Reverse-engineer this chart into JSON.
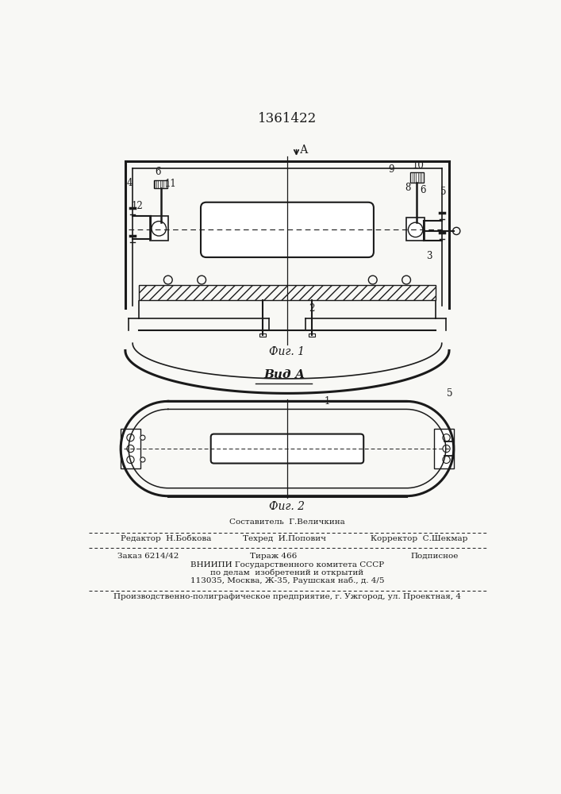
{
  "patent_number": "1361422",
  "fig1_caption": "Фиг. 1",
  "fig2_caption": "Фиг. 2",
  "view_label": "Вид А",
  "arrow_label": "А",
  "editor_line": "Редактор  Н.Бобкова",
  "compositor_line": "Составитель  Г.Величкина",
  "techred_line": "Техред  И.Попович",
  "corrector_line": "Корректор  С.Шекмар",
  "order_line": "Заказ 6214/42",
  "tirazh_line": "Тираж 466",
  "podpisnoe_line": "Подписное",
  "vnipi_line": "ВНИИПИ Государственного комитета СССР",
  "vnipi_line2": "по делам  изобретений и открытий",
  "vnipi_line3": "113035, Москва, Ж-35, Раушская наб., д. 4/5",
  "print_line": "Производственно-полиграфическое предприятие, г. Ужгород, ул. Проектная, 4",
  "bg_color": "#f8f8f5",
  "line_color": "#1a1a1a",
  "text_color": "#1a1a1a"
}
